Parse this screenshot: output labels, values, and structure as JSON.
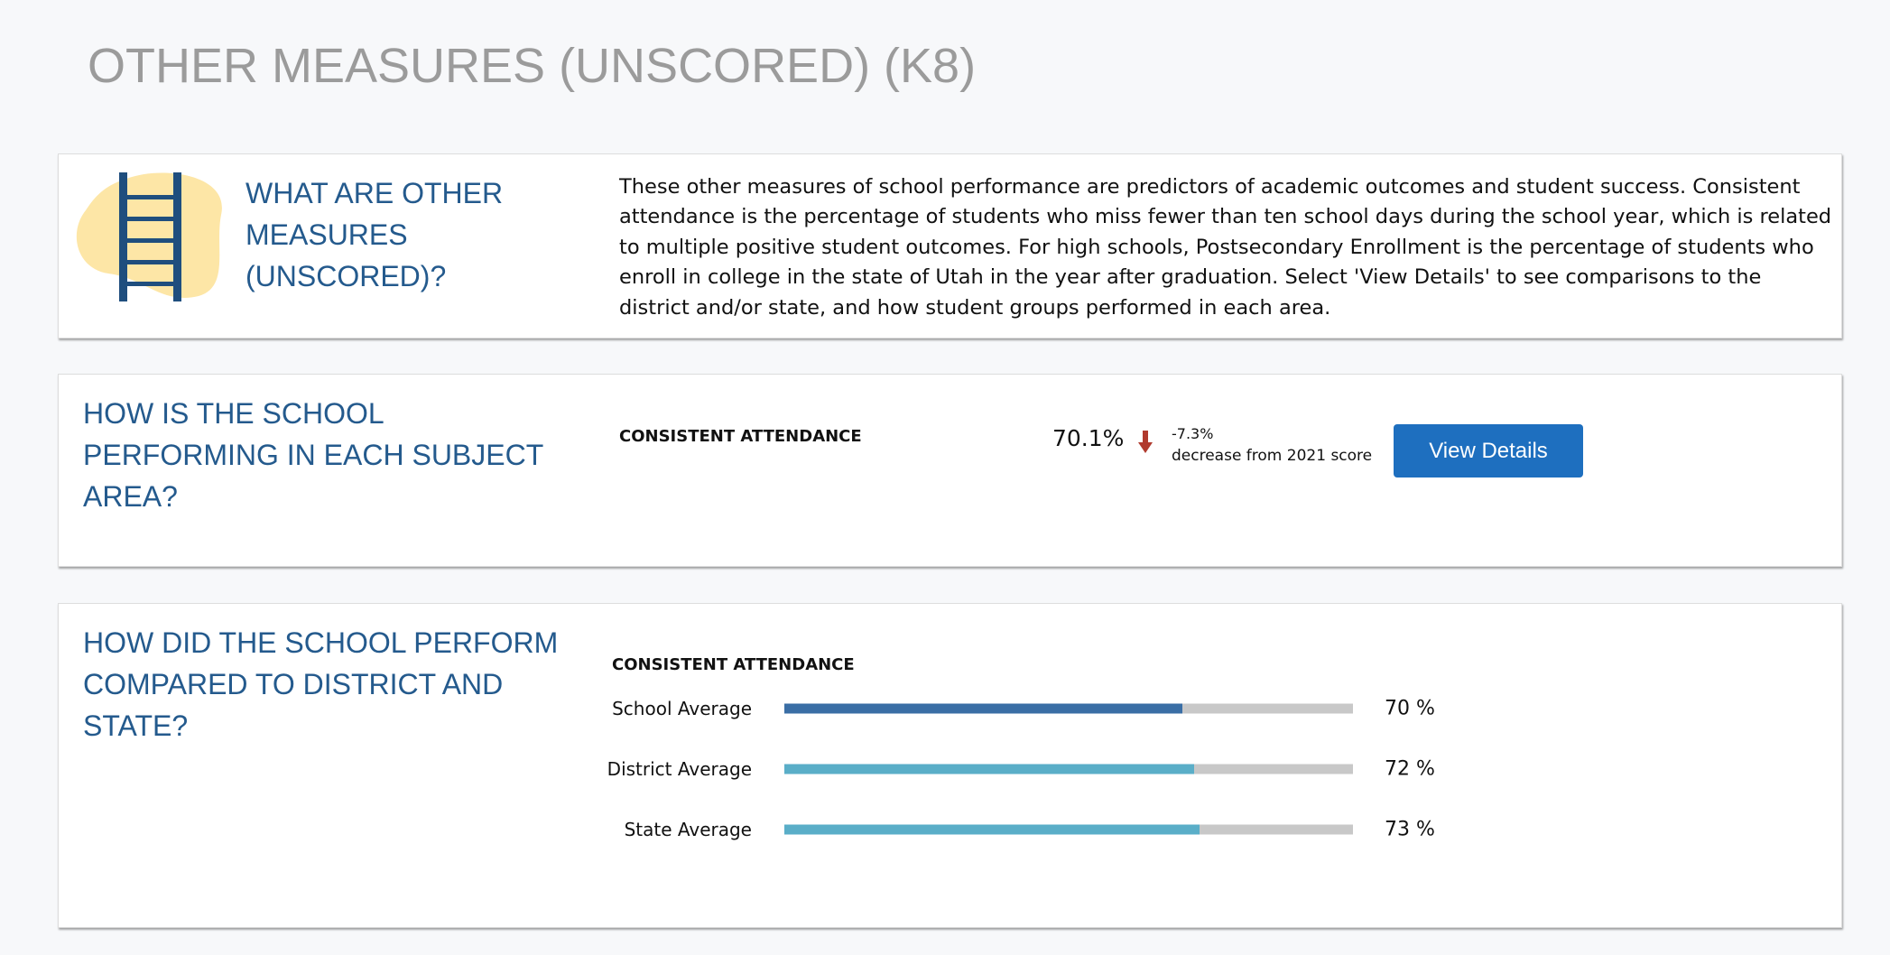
{
  "header": {
    "title": "OTHER MEASURES (UNSCORED) (K8)"
  },
  "intro": {
    "heading": "WHAT ARE OTHER MEASURES (UNSCORED)?",
    "text": "These other measures of school performance are predictors of academic outcomes and student success. Consistent attendance is the percentage of students who miss fewer than ten school days during the school year, which is related to multiple positive student outcomes. For high schools, Postsecondary Enrollment is the percentage of students who enroll in college in the state of Utah in the year after graduation. Select 'View Details' to see comparisons to the district and/or state, and how student groups performed in each area."
  },
  "performance": {
    "heading": "HOW IS THE SCHOOL PERFORMING IN EACH SUBJECT AREA?",
    "measure": "CONSISTENT ATTENDANCE",
    "score": "70.1%",
    "change": "-7.3%",
    "change_note": "decrease from 2021 score",
    "button": "View Details"
  },
  "comparison": {
    "heading": "HOW DID THE SCHOOL PERFORM COMPARED TO DISTRICT AND STATE?",
    "measure": "CONSISTENT ATTENDANCE",
    "xlim": [
      0,
      100
    ],
    "rows": [
      {
        "label": "School Average",
        "value": 70,
        "value_label": "70 %",
        "color": "#3a6ea5"
      },
      {
        "label": "District Average",
        "value": 72,
        "value_label": "72 %",
        "color": "#5aaec8"
      },
      {
        "label": "State Average",
        "value": 73,
        "value_label": "73 %",
        "color": "#5aaec8"
      }
    ]
  }
}
